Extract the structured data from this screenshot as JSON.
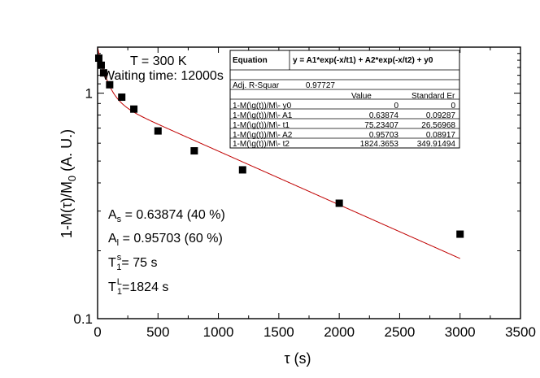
{
  "chart_data": {
    "type": "scatter",
    "xlabel": "τ (s)",
    "ylabel": "1-M(τ)/M₀ (A. U.)",
    "xlim": [
      0,
      3500
    ],
    "ylim": [
      0.1,
      1.6
    ],
    "yscale": "log",
    "x_ticks": [
      "0",
      "500",
      "1000",
      "1500",
      "2000",
      "2500",
      "3000",
      "3500"
    ],
    "y_ticks": [
      "0.1",
      "1"
    ],
    "grid": false,
    "series": [
      {
        "style": "markers",
        "x": [
          10,
          30,
          50,
          100,
          200,
          300,
          500,
          800,
          1200,
          2000,
          3000
        ],
        "y": [
          1.43,
          1.33,
          1.23,
          1.09,
          0.96,
          0.85,
          0.68,
          0.555,
          0.457,
          0.325,
          0.237
        ]
      },
      {
        "style": "fit-line",
        "color": "#c00000",
        "model": "y = A1*exp(-x/t1) + A2*exp(-x/t2) + y0",
        "params": {
          "y0": 0,
          "A1": 0.63874,
          "t1": 75.23407,
          "A2": 0.95703,
          "t2": 1824.3653
        },
        "x_range": [
          0,
          3000
        ]
      }
    ]
  },
  "annotations": {
    "temperature": "T = 300 K",
    "waiting_time": "Waiting time: 12000s",
    "as_main": "A",
    "as_sub": "s",
    "as_rest": " = 0.63874 (40 %)",
    "al_main": "A",
    "al_sub": "l",
    "al_rest": " = 0.95703 (60 %)",
    "t1s_main": "T",
    "t1s_sup": "s",
    "t1s_sub": "1",
    "t1s_rest": "= 75 s",
    "t1l_main": "T",
    "t1l_sup": "L",
    "t1l_sub": "1",
    "t1l_rest": "=1824 s"
  },
  "fit_table": {
    "header": [
      "Equation",
      "y = A1*exp(-x/t1) + A2*exp(-x/t2) + y0"
    ],
    "adj_label": "Adj. R-Squar",
    "adj_value": "0.97727",
    "col_headers": [
      "Value",
      "Standard Er"
    ],
    "rows": [
      [
        "1-M(\\g(t))/M\\- y0",
        "0",
        "0"
      ],
      [
        "1-M(\\g(t))/M\\- A1",
        "0.63874",
        "0.09287"
      ],
      [
        "1-M(\\g(t))/M\\- t1",
        "75.23407",
        "26.56968"
      ],
      [
        "1-M(\\g(t))/M\\- A2",
        "0.95703",
        "0.08917"
      ],
      [
        "1-M(\\g(t))/M\\- t2",
        "1824.3653",
        "349.91494"
      ]
    ]
  }
}
